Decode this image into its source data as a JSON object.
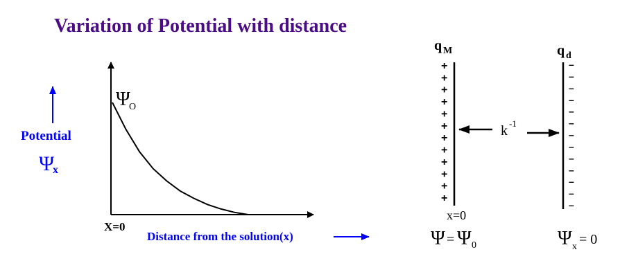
{
  "title": "Variation of Potential with distance",
  "colors": {
    "title": "#4b0d86",
    "blue": "#0000ff",
    "black": "#000000"
  },
  "graph": {
    "y_label": "Potential",
    "y_symbol": "Ψ",
    "y_subscript": "x",
    "curve_label_symbol": "Ψ",
    "curve_label_subscript": "O",
    "origin_label": "X=0",
    "x_label": "Distance from the solution(x)"
  },
  "chart_data": {
    "type": "line",
    "x": [
      0,
      1,
      2,
      3,
      4,
      5,
      6,
      7,
      8,
      9,
      10
    ],
    "y": [
      1.0,
      0.76,
      0.56,
      0.41,
      0.3,
      0.21,
      0.145,
      0.09,
      0.05,
      0.02,
      0.0
    ],
    "title": "Variation of Potential with distance",
    "xlabel": "Distance from the solution(x)",
    "ylabel": "Potential",
    "grid": false
  },
  "double_layer": {
    "metal_charge_label": "q",
    "metal_charge_subscript": "M",
    "diffuse_charge_label": "q",
    "diffuse_charge_subscript": "d",
    "plus_sign": "+",
    "minus_sign": "–",
    "plus_count": 12,
    "minus_count": 13,
    "debye_label": "k",
    "debye_superscript": "-1",
    "x0_label": "x=0",
    "left_eq_symbol": "Ψ",
    "left_eq_text": "=",
    "left_eq_symbol2": "Ψ",
    "left_eq_subscript": "0",
    "right_eq_symbol": "Ψ",
    "right_eq_subscript": "x",
    "right_eq_text": "= 0"
  }
}
